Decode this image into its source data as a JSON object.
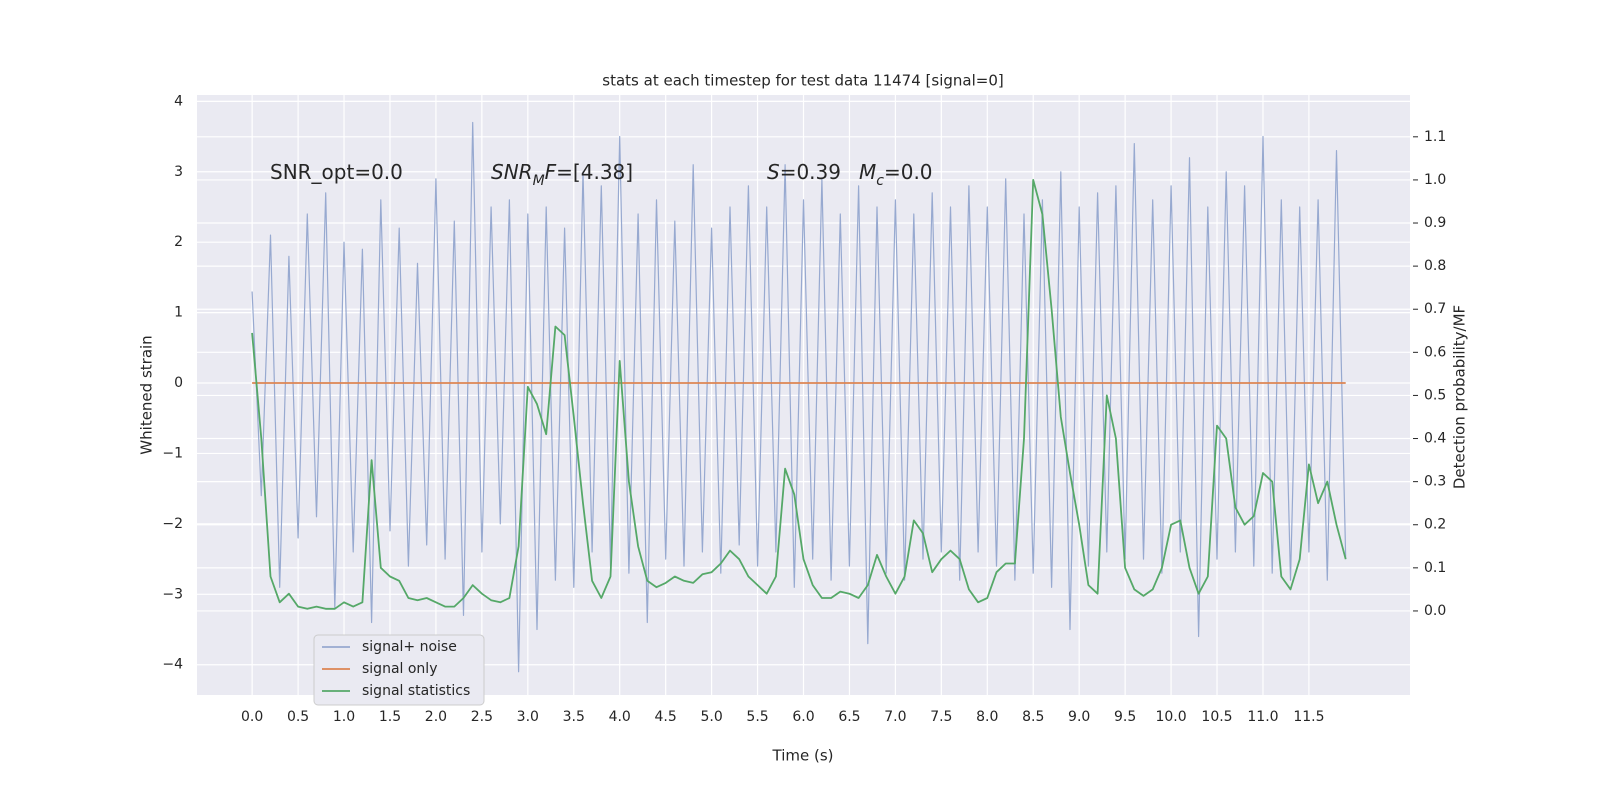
{
  "chart_data": {
    "type": "line",
    "title": "stats at each timestep for test data 11474 [signal=0]",
    "xlabel": "Time (s)",
    "ylabel": "Whitened strain",
    "y2label": "Detection probability/MF",
    "xlim": [
      -0.6,
      12.6
    ],
    "ylim": [
      -4.43,
      4.09
    ],
    "y2lim": [
      -0.195,
      1.197
    ],
    "xticks": [
      {
        "value": 0,
        "label": "0.0"
      },
      0.5,
      {
        "value": 1,
        "label": "1.0"
      },
      1.5,
      {
        "value": 2,
        "label": "2.0"
      },
      2.5,
      {
        "value": 3,
        "label": "3.0"
      },
      3.5,
      {
        "value": 4,
        "label": "4.0"
      },
      4.5,
      {
        "value": 5,
        "label": "5.0"
      },
      5.5,
      {
        "value": 6,
        "label": "6.0"
      },
      6.5,
      {
        "value": 7,
        "label": "7.0"
      },
      7.5,
      {
        "value": 8,
        "label": "8.0"
      },
      8.5,
      {
        "value": 9,
        "label": "9.0"
      },
      9.5,
      {
        "value": 10,
        "label": "10.0"
      },
      10.5,
      {
        "value": 11,
        "label": "11.0"
      },
      11.5
    ],
    "yticks": [
      {
        "value": -4,
        "label": "−4"
      },
      {
        "value": -3,
        "label": "−3"
      },
      {
        "value": -2,
        "label": "−2"
      },
      {
        "value": -1,
        "label": "−1"
      },
      0,
      1,
      2,
      3,
      4
    ],
    "y2ticks": [
      {
        "value": 0,
        "label": "0.0"
      },
      0.1,
      0.2,
      0.3,
      0.4,
      0.5,
      0.6,
      0.7,
      0.8,
      0.9,
      {
        "value": 1,
        "label": "1.0"
      },
      1.1
    ],
    "grid": true,
    "legend": "lower left",
    "annotations": [
      {
        "parts": [
          {
            "text": "SNR_opt=0.0"
          }
        ]
      },
      {
        "parts": [
          {
            "text": "SNR",
            "italic": true
          },
          {
            "text": "M",
            "italic": true,
            "sub": true
          },
          {
            "text": "F",
            "italic": true
          },
          {
            "text": "=[4.38]"
          }
        ]
      },
      {
        "parts": [
          {
            "text": "S",
            "italic": true
          },
          {
            "text": "=0.39"
          }
        ]
      },
      {
        "parts": [
          {
            "text": "M",
            "italic": true
          },
          {
            "text": "c",
            "italic": true,
            "sub": true
          },
          {
            "text": "=0.0"
          }
        ]
      }
    ],
    "x": [
      0,
      0.1,
      0.2,
      0.3,
      0.4,
      0.5,
      0.6,
      0.7,
      0.8,
      0.9,
      1,
      1.1,
      1.2,
      1.3,
      1.4,
      1.5,
      1.6,
      1.7,
      1.8,
      1.9,
      2,
      2.1,
      2.2,
      2.3,
      2.4,
      2.5,
      2.6,
      2.7,
      2.8,
      2.9,
      3,
      3.1,
      3.2,
      3.3,
      3.4,
      3.5,
      3.6,
      3.7,
      3.8,
      3.9,
      4,
      4.1,
      4.2,
      4.3,
      4.4,
      4.5,
      4.6,
      4.7,
      4.8,
      4.9,
      5,
      5.1,
      5.2,
      5.3,
      5.4,
      5.5,
      5.6,
      5.7,
      5.8,
      5.9,
      6,
      6.1,
      6.2,
      6.3,
      6.4,
      6.5,
      6.6,
      6.7,
      6.8,
      6.9,
      7,
      7.1,
      7.2,
      7.3,
      7.4,
      7.5,
      7.6,
      7.7,
      7.8,
      7.9,
      8,
      8.1,
      8.2,
      8.3,
      8.4,
      8.5,
      8.6,
      8.7,
      8.8,
      8.9,
      9,
      9.1,
      9.2,
      9.3,
      9.4,
      9.5,
      9.6,
      9.7,
      9.8,
      9.9,
      10,
      10.1,
      10.2,
      10.3,
      10.4,
      10.5,
      10.6,
      10.7,
      10.8,
      10.9,
      11,
      11.1,
      11.2,
      11.3,
      11.4,
      11.5,
      11.6,
      11.7,
      11.8,
      11.9
    ],
    "series": [
      {
        "name": "signal+ noise",
        "color": "#97a9d0",
        "values": [
          1.3,
          -1.6,
          2.1,
          -2.9,
          1.8,
          -2.2,
          2.4,
          -1.9,
          2.7,
          -3.2,
          2.0,
          -2.4,
          1.9,
          -3.4,
          2.6,
          -2.1,
          2.2,
          -2.6,
          1.7,
          -2.3,
          2.9,
          -2.5,
          2.3,
          -3.3,
          3.7,
          -2.4,
          2.5,
          -2.0,
          2.6,
          -4.1,
          2.4,
          -3.5,
          2.5,
          -2.8,
          2.2,
          -2.9,
          3.0,
          -2.4,
          2.8,
          -2.6,
          3.5,
          -2.7,
          2.4,
          -3.4,
          2.6,
          -2.5,
          2.3,
          -2.6,
          3.1,
          -2.4,
          2.2,
          -2.7,
          2.5,
          -2.3,
          2.8,
          -2.6,
          2.5,
          -2.4,
          3.1,
          -2.9,
          2.6,
          -2.5,
          2.9,
          -2.8,
          2.4,
          -2.6,
          2.8,
          -3.7,
          2.5,
          -2.7,
          2.6,
          -2.8,
          2.4,
          -2.5,
          2.7,
          -2.4,
          2.5,
          -2.8,
          2.8,
          -2.4,
          2.5,
          -2.6,
          2.9,
          -2.8,
          2.4,
          -2.7,
          2.6,
          -2.9,
          3.0,
          -3.5,
          2.5,
          -2.6,
          2.7,
          -2.4,
          2.8,
          -2.5,
          3.4,
          -2.5,
          2.6,
          -2.7,
          2.8,
          -2.4,
          3.2,
          -3.6,
          2.5,
          -2.5,
          3.0,
          -2.4,
          2.8,
          -2.6,
          3.5,
          -2.7,
          2.6,
          -2.8,
          2.5,
          -2.4,
          2.6,
          -2.8,
          3.3,
          -2.5
        ]
      },
      {
        "name": "signal only",
        "color": "#dd8452",
        "x": [
          0,
          11.9
        ],
        "values": [
          0,
          0
        ]
      },
      {
        "name": "signal statistics",
        "color": "#55a868",
        "axis": "y2",
        "values": [
          0.645,
          0.4,
          0.08,
          0.02,
          0.04,
          0.01,
          0.005,
          0.01,
          0.005,
          0.005,
          0.02,
          0.01,
          0.02,
          0.35,
          0.1,
          0.08,
          0.07,
          0.03,
          0.025,
          0.03,
          0.02,
          0.01,
          0.01,
          0.03,
          0.06,
          0.04,
          0.025,
          0.02,
          0.03,
          0.15,
          0.52,
          0.48,
          0.41,
          0.66,
          0.64,
          0.45,
          0.25,
          0.07,
          0.03,
          0.08,
          0.58,
          0.3,
          0.15,
          0.07,
          0.055,
          0.065,
          0.08,
          0.07,
          0.065,
          0.085,
          0.09,
          0.11,
          0.14,
          0.12,
          0.08,
          0.06,
          0.04,
          0.08,
          0.33,
          0.27,
          0.12,
          0.06,
          0.03,
          0.03,
          0.045,
          0.04,
          0.03,
          0.06,
          0.13,
          0.08,
          0.04,
          0.08,
          0.21,
          0.18,
          0.09,
          0.12,
          0.14,
          0.12,
          0.05,
          0.02,
          0.03,
          0.09,
          0.11,
          0.11,
          0.4,
          1.0,
          0.92,
          0.7,
          0.45,
          0.32,
          0.2,
          0.06,
          0.04,
          0.5,
          0.4,
          0.1,
          0.05,
          0.035,
          0.05,
          0.1,
          0.2,
          0.21,
          0.1,
          0.04,
          0.08,
          0.43,
          0.4,
          0.24,
          0.2,
          0.22,
          0.32,
          0.3,
          0.08,
          0.05,
          0.12,
          0.34,
          0.25,
          0.3,
          0.2,
          0.12
        ]
      }
    ]
  }
}
